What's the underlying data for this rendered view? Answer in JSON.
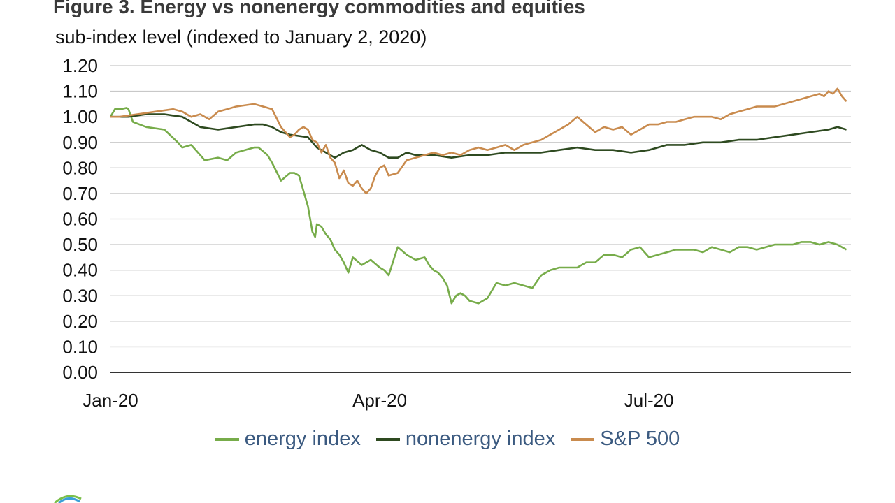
{
  "figure": {
    "title": "Figure 3. Energy vs nonenergy commodities and equities",
    "subtitle": "sub-index level (indexed to January 2, 2020)"
  },
  "chart_data": {
    "type": "line",
    "ylabel": "sub-index level (indexed to January 2, 2020)",
    "ylim": [
      0,
      1.2
    ],
    "xlim": [
      0,
      8.25
    ],
    "y_ticks": [
      "0.00",
      "0.10",
      "0.20",
      "0.30",
      "0.40",
      "0.50",
      "0.60",
      "0.70",
      "0.80",
      "0.90",
      "1.00",
      "1.10",
      "1.20"
    ],
    "x_ticks": [
      {
        "label": "Jan-20",
        "x": 0
      },
      {
        "label": "Apr-20",
        "x": 3
      },
      {
        "label": "Jul-20",
        "x": 6
      }
    ],
    "x_unit": "months since Jan 2, 2020",
    "grid": true,
    "legend_position": "bottom",
    "series": [
      {
        "name": "energy index",
        "color": "#77ac4a",
        "x": [
          0,
          0.05,
          0.12,
          0.18,
          0.2,
          0.25,
          0.4,
          0.6,
          0.75,
          0.8,
          0.9,
          1.0,
          1.05,
          1.2,
          1.3,
          1.4,
          1.5,
          1.6,
          1.65,
          1.75,
          1.8,
          1.9,
          2.0,
          2.05,
          2.1,
          2.2,
          2.25,
          2.28,
          2.3,
          2.35,
          2.4,
          2.45,
          2.5,
          2.55,
          2.6,
          2.65,
          2.7,
          2.8,
          2.9,
          3.0,
          3.05,
          3.1,
          3.2,
          3.3,
          3.4,
          3.5,
          3.55,
          3.6,
          3.65,
          3.7,
          3.75,
          3.8,
          3.85,
          3.9,
          3.95,
          4.0,
          4.1,
          4.2,
          4.3,
          4.4,
          4.5,
          4.6,
          4.7,
          4.8,
          4.9,
          5.0,
          5.1,
          5.2,
          5.3,
          5.4,
          5.5,
          5.6,
          5.7,
          5.8,
          5.9,
          6.0,
          6.1,
          6.2,
          6.3,
          6.4,
          6.5,
          6.6,
          6.7,
          6.8,
          6.9,
          7.0,
          7.1,
          7.2,
          7.3,
          7.4,
          7.5,
          7.6,
          7.7,
          7.8,
          7.9,
          8.0,
          8.1,
          8.15,
          8.2
        ],
        "y": [
          1.0,
          1.03,
          1.03,
          1.035,
          1.03,
          0.98,
          0.96,
          0.95,
          0.9,
          0.88,
          0.89,
          0.85,
          0.83,
          0.84,
          0.83,
          0.86,
          0.87,
          0.88,
          0.88,
          0.85,
          0.82,
          0.75,
          0.78,
          0.78,
          0.77,
          0.65,
          0.55,
          0.53,
          0.58,
          0.57,
          0.54,
          0.52,
          0.48,
          0.46,
          0.43,
          0.39,
          0.45,
          0.42,
          0.44,
          0.41,
          0.4,
          0.38,
          0.49,
          0.46,
          0.44,
          0.45,
          0.42,
          0.4,
          0.39,
          0.37,
          0.34,
          0.27,
          0.3,
          0.31,
          0.3,
          0.28,
          0.27,
          0.29,
          0.35,
          0.34,
          0.35,
          0.34,
          0.33,
          0.38,
          0.4,
          0.41,
          0.41,
          0.41,
          0.43,
          0.43,
          0.46,
          0.46,
          0.45,
          0.48,
          0.49,
          0.45,
          0.46,
          0.47,
          0.48,
          0.48,
          0.48,
          0.47,
          0.49,
          0.48,
          0.47,
          0.49,
          0.49,
          0.48,
          0.49,
          0.5,
          0.5,
          0.5,
          0.51,
          0.51,
          0.5,
          0.51,
          0.5,
          0.49,
          0.48
        ]
      },
      {
        "name": "nonenergy index",
        "color": "#2e4a20",
        "x": [
          0,
          0.2,
          0.4,
          0.6,
          0.8,
          0.9,
          1.0,
          1.2,
          1.4,
          1.6,
          1.7,
          1.8,
          1.9,
          2.0,
          2.2,
          2.3,
          2.4,
          2.5,
          2.6,
          2.7,
          2.8,
          2.9,
          3.0,
          3.1,
          3.2,
          3.3,
          3.4,
          3.6,
          3.8,
          4.0,
          4.2,
          4.4,
          4.6,
          4.8,
          5.0,
          5.2,
          5.4,
          5.6,
          5.8,
          6.0,
          6.2,
          6.4,
          6.6,
          6.8,
          7.0,
          7.2,
          7.4,
          7.6,
          7.8,
          8.0,
          8.1,
          8.2
        ],
        "y": [
          1.0,
          1.0,
          1.01,
          1.01,
          1.0,
          0.98,
          0.96,
          0.95,
          0.96,
          0.97,
          0.97,
          0.96,
          0.94,
          0.93,
          0.92,
          0.88,
          0.86,
          0.84,
          0.86,
          0.87,
          0.89,
          0.87,
          0.86,
          0.84,
          0.84,
          0.86,
          0.85,
          0.85,
          0.84,
          0.85,
          0.85,
          0.86,
          0.86,
          0.86,
          0.87,
          0.88,
          0.87,
          0.87,
          0.86,
          0.87,
          0.89,
          0.89,
          0.9,
          0.9,
          0.91,
          0.91,
          0.92,
          0.93,
          0.94,
          0.95,
          0.96,
          0.95
        ]
      },
      {
        "name": "S&P 500",
        "color": "#c98b4e",
        "x": [
          0,
          0.1,
          0.3,
          0.5,
          0.7,
          0.8,
          0.9,
          1.0,
          1.1,
          1.2,
          1.3,
          1.4,
          1.6,
          1.7,
          1.8,
          1.9,
          1.95,
          2.0,
          2.05,
          2.1,
          2.15,
          2.2,
          2.25,
          2.3,
          2.35,
          2.4,
          2.45,
          2.5,
          2.55,
          2.6,
          2.65,
          2.7,
          2.75,
          2.8,
          2.85,
          2.9,
          2.95,
          3.0,
          3.05,
          3.1,
          3.2,
          3.3,
          3.4,
          3.5,
          3.6,
          3.7,
          3.8,
          3.9,
          4.0,
          4.1,
          4.2,
          4.3,
          4.4,
          4.5,
          4.6,
          4.7,
          4.8,
          4.9,
          5.0,
          5.1,
          5.2,
          5.3,
          5.4,
          5.5,
          5.6,
          5.7,
          5.8,
          5.9,
          6.0,
          6.1,
          6.2,
          6.3,
          6.4,
          6.5,
          6.6,
          6.7,
          6.8,
          6.9,
          7.0,
          7.1,
          7.2,
          7.3,
          7.4,
          7.5,
          7.6,
          7.7,
          7.8,
          7.9,
          7.95,
          8.0,
          8.05,
          8.1,
          8.15,
          8.2
        ],
        "y": [
          1.0,
          1.0,
          1.01,
          1.02,
          1.03,
          1.02,
          1.0,
          1.01,
          0.99,
          1.02,
          1.03,
          1.04,
          1.05,
          1.04,
          1.03,
          0.96,
          0.94,
          0.92,
          0.93,
          0.95,
          0.96,
          0.95,
          0.91,
          0.9,
          0.86,
          0.89,
          0.84,
          0.82,
          0.76,
          0.79,
          0.74,
          0.73,
          0.75,
          0.72,
          0.7,
          0.72,
          0.77,
          0.8,
          0.81,
          0.77,
          0.78,
          0.83,
          0.84,
          0.85,
          0.86,
          0.85,
          0.86,
          0.85,
          0.87,
          0.88,
          0.87,
          0.88,
          0.89,
          0.87,
          0.89,
          0.9,
          0.91,
          0.93,
          0.95,
          0.97,
          1.0,
          0.97,
          0.94,
          0.96,
          0.95,
          0.96,
          0.93,
          0.95,
          0.97,
          0.97,
          0.98,
          0.98,
          0.99,
          1.0,
          1.0,
          1.0,
          0.99,
          1.01,
          1.02,
          1.03,
          1.04,
          1.04,
          1.04,
          1.05,
          1.06,
          1.07,
          1.08,
          1.09,
          1.08,
          1.1,
          1.09,
          1.11,
          1.08,
          1.06
        ]
      }
    ]
  }
}
